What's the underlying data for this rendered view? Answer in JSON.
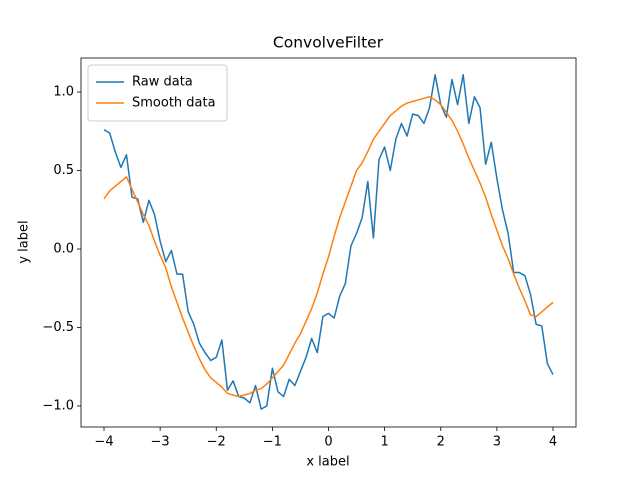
{
  "chart_data": {
    "type": "line",
    "title": "ConvolveFilter",
    "xlabel": "x label",
    "ylabel": "y label",
    "x": [
      -4.0,
      -3.9,
      -3.8,
      -3.7,
      -3.6,
      -3.5,
      -3.4,
      -3.3,
      -3.2,
      -3.1,
      -3.0,
      -2.9,
      -2.8,
      -2.7,
      -2.6,
      -2.5,
      -2.4,
      -2.3,
      -2.2,
      -2.1,
      -2.0,
      -1.9,
      -1.8,
      -1.7,
      -1.6,
      -1.5,
      -1.4,
      -1.3,
      -1.2,
      -1.1,
      -1.0,
      -0.9,
      -0.8,
      -0.7,
      -0.6,
      -0.5,
      -0.4,
      -0.3,
      -0.2,
      -0.1,
      0.0,
      0.1,
      0.2,
      0.3,
      0.4,
      0.5,
      0.6,
      0.7,
      0.8,
      0.9,
      1.0,
      1.1,
      1.2,
      1.3,
      1.4,
      1.5,
      1.6,
      1.7,
      1.8,
      1.9,
      2.0,
      2.1,
      2.2,
      2.3,
      2.4,
      2.5,
      2.6,
      2.7,
      2.8,
      2.9,
      3.0,
      3.1,
      3.2,
      3.3,
      3.4,
      3.5,
      3.6,
      3.7,
      3.8,
      3.9,
      4.0
    ],
    "series": [
      {
        "name": "Raw data",
        "color": "#1f77b4",
        "values": [
          0.76,
          0.74,
          0.62,
          0.52,
          0.6,
          0.33,
          0.32,
          0.17,
          0.31,
          0.22,
          0.05,
          -0.08,
          -0.01,
          -0.16,
          -0.16,
          -0.4,
          -0.48,
          -0.6,
          -0.66,
          -0.71,
          -0.69,
          -0.58,
          -0.9,
          -0.84,
          -0.94,
          -0.95,
          -0.98,
          -0.87,
          -1.02,
          -1.0,
          -0.76,
          -0.91,
          -0.94,
          -0.83,
          -0.87,
          -0.78,
          -0.69,
          -0.57,
          -0.66,
          -0.43,
          -0.41,
          -0.44,
          -0.3,
          -0.22,
          0.02,
          0.1,
          0.2,
          0.43,
          0.07,
          0.57,
          0.65,
          0.5,
          0.7,
          0.8,
          0.72,
          0.86,
          0.85,
          0.8,
          0.9,
          1.11,
          0.92,
          0.84,
          1.08,
          0.92,
          1.11,
          0.8,
          0.97,
          0.9,
          0.54,
          0.68,
          0.45,
          0.25,
          0.1,
          -0.15,
          -0.15,
          -0.17,
          -0.29,
          -0.48,
          -0.49,
          -0.73,
          -0.8
        ]
      },
      {
        "name": "Smooth data",
        "color": "#ff7f0e",
        "values": [
          0.32,
          0.37,
          0.4,
          0.43,
          0.46,
          0.38,
          0.3,
          0.22,
          0.15,
          0.05,
          -0.04,
          -0.12,
          -0.24,
          -0.34,
          -0.44,
          -0.53,
          -0.62,
          -0.7,
          -0.77,
          -0.82,
          -0.85,
          -0.88,
          -0.92,
          -0.93,
          -0.94,
          -0.93,
          -0.92,
          -0.9,
          -0.89,
          -0.86,
          -0.82,
          -0.78,
          -0.74,
          -0.67,
          -0.6,
          -0.54,
          -0.46,
          -0.38,
          -0.28,
          -0.16,
          -0.05,
          0.08,
          0.2,
          0.3,
          0.4,
          0.5,
          0.55,
          0.62,
          0.7,
          0.75,
          0.8,
          0.85,
          0.88,
          0.91,
          0.93,
          0.94,
          0.95,
          0.96,
          0.97,
          0.95,
          0.92,
          0.87,
          0.82,
          0.75,
          0.67,
          0.58,
          0.5,
          0.42,
          0.33,
          0.22,
          0.12,
          0.02,
          -0.06,
          -0.16,
          -0.25,
          -0.33,
          -0.42,
          -0.43,
          -0.4,
          -0.37,
          -0.34
        ]
      }
    ],
    "xlim": [
      -4.41,
      4.41
    ],
    "ylim": [
      -1.134,
      1.217
    ],
    "xticks": [
      {
        "value": -4,
        "label": "−4"
      },
      {
        "value": -3,
        "label": "−3"
      },
      {
        "value": -2,
        "label": "−2"
      },
      {
        "value": -1,
        "label": "−1"
      },
      0,
      1,
      2,
      3,
      4
    ],
    "yticks": [
      {
        "value": -1.0,
        "label": "−1.0"
      },
      {
        "value": -0.5,
        "label": "−0.5"
      },
      {
        "value": 0.0,
        "label": "0.0"
      },
      0.5,
      {
        "value": 1.0,
        "label": "1.0"
      }
    ],
    "legend": "upper left"
  }
}
